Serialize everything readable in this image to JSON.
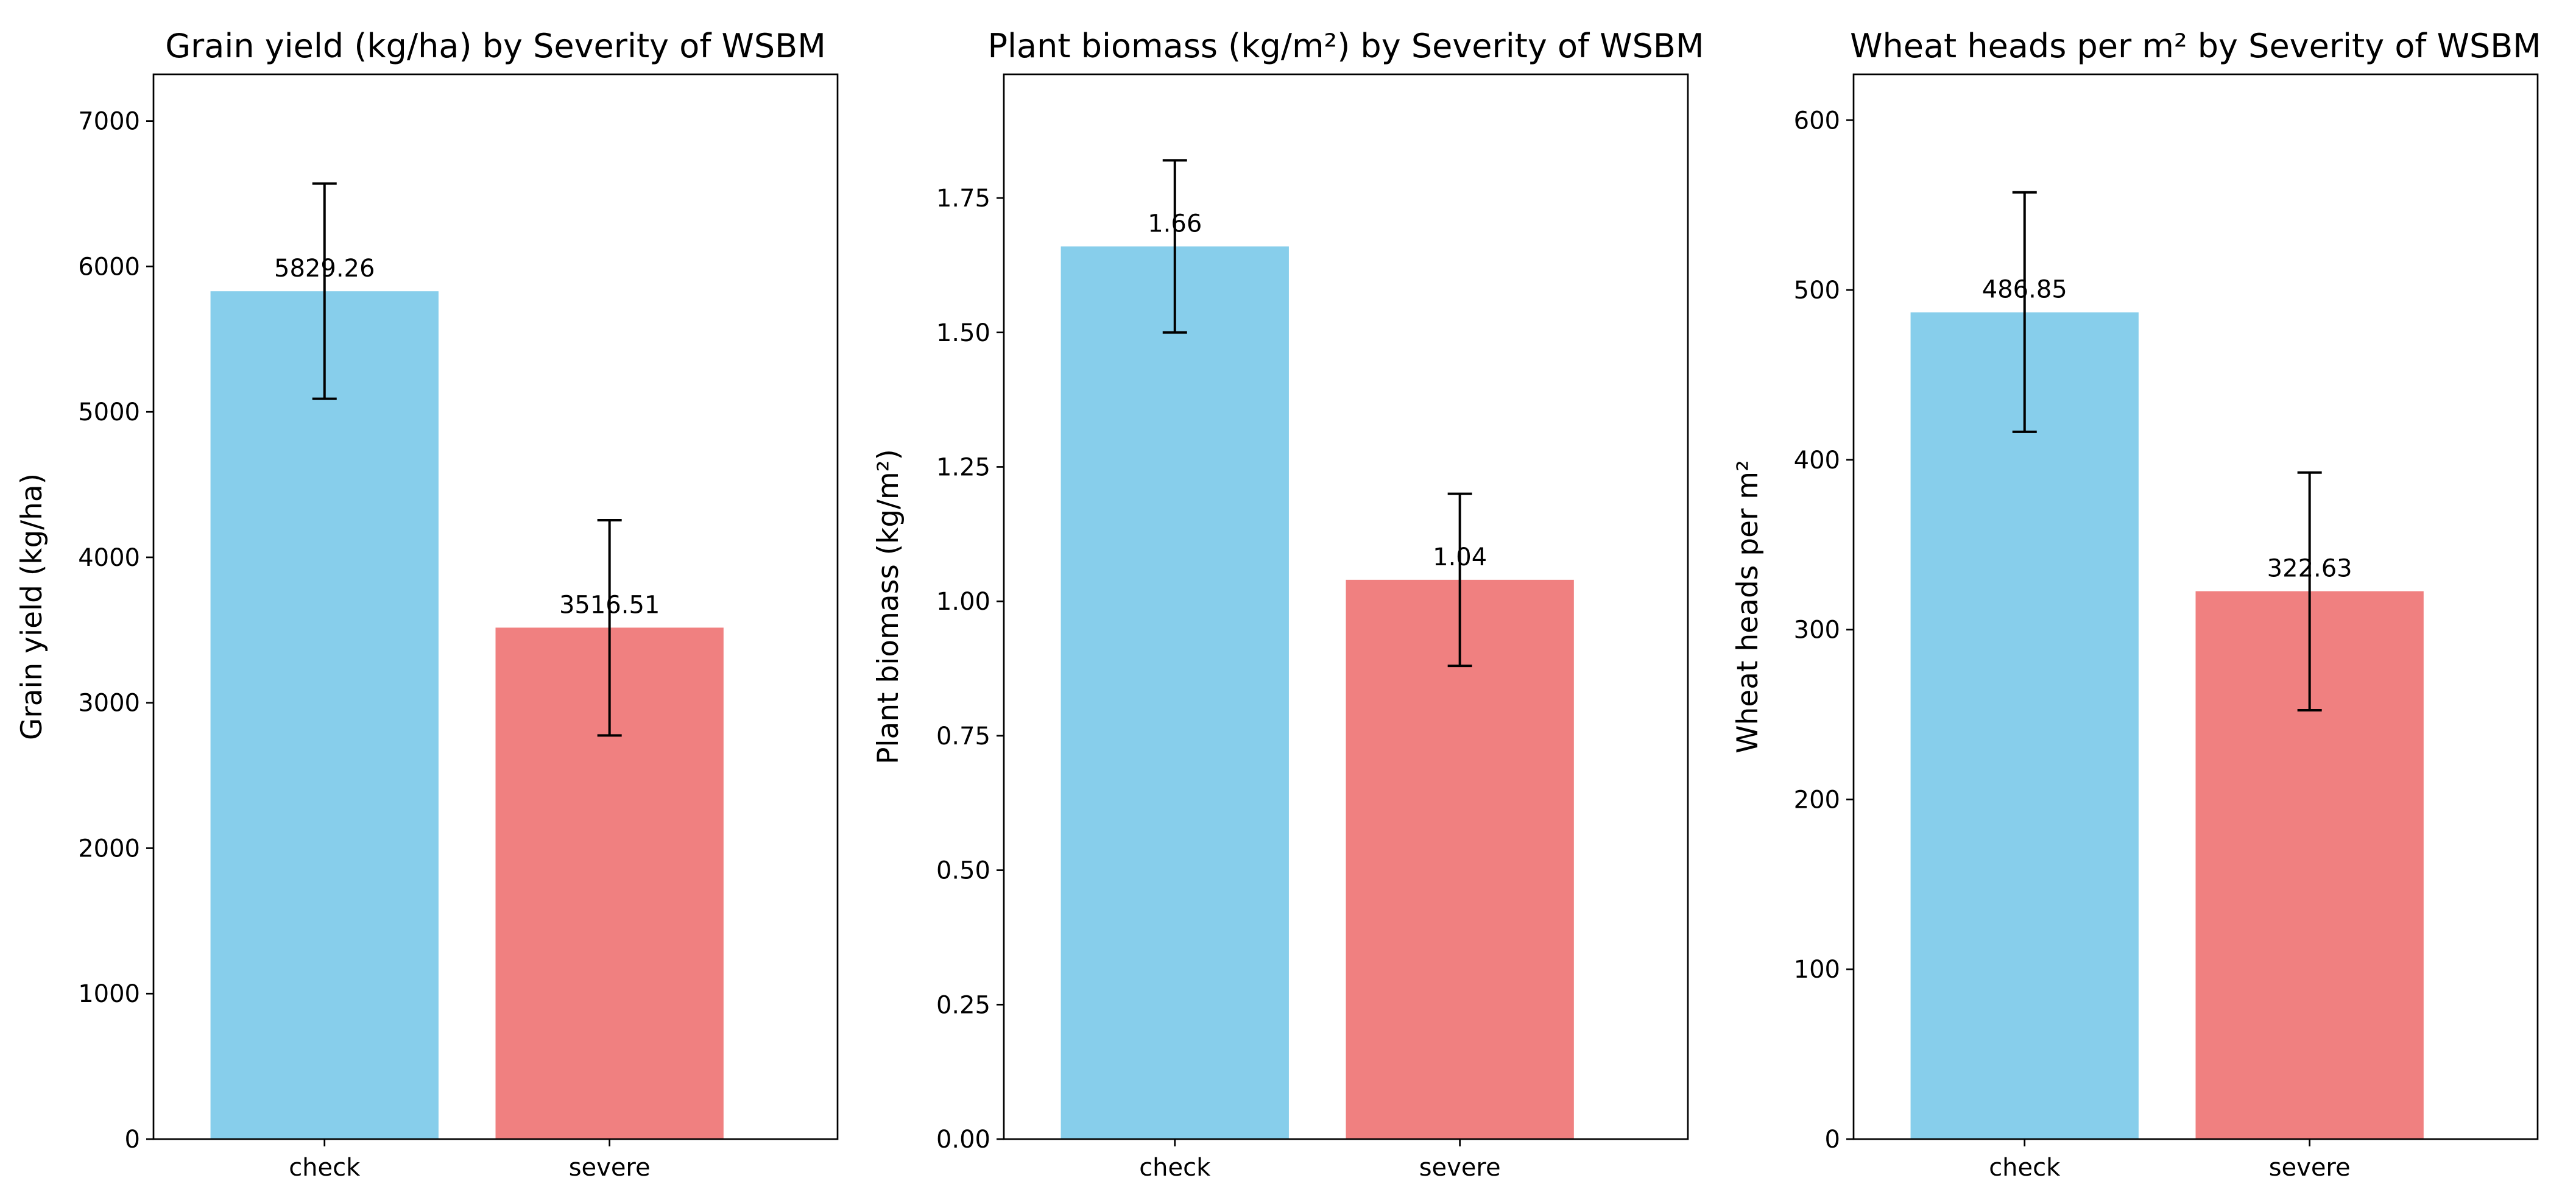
{
  "chart_data": [
    {
      "type": "bar",
      "title": "Grain yield (kg/ha) by Severity of WSBM",
      "xlabel": "",
      "ylabel": "Grain yield (kg/ha)",
      "categories": [
        "check",
        "severe"
      ],
      "values": [
        5829.26,
        3516.51
      ],
      "value_labels": [
        "5829.26",
        "3516.51"
      ],
      "error_low": [
        5090,
        2775
      ],
      "error_high": [
        6570,
        4255
      ],
      "ylim": [
        0,
        7321
      ],
      "yticks": [
        0,
        1000,
        2000,
        3000,
        4000,
        5000,
        6000,
        7000
      ],
      "ytick_labels": [
        "0",
        "1000",
        "2000",
        "3000",
        "4000",
        "5000",
        "6000",
        "7000"
      ],
      "colors": [
        "#87ceeb",
        "#f08080"
      ]
    },
    {
      "type": "bar",
      "title": "Plant biomass (kg/m²) by Severity of WSBM",
      "xlabel": "",
      "ylabel": "Plant biomass (kg/m²)",
      "categories": [
        "check",
        "severe"
      ],
      "values": [
        1.66,
        1.04
      ],
      "value_labels": [
        "1.66",
        "1.04"
      ],
      "error_low": [
        1.5,
        0.88
      ],
      "error_high": [
        1.82,
        1.2
      ],
      "ylim": [
        0,
        1.98
      ],
      "yticks": [
        0,
        0.25,
        0.5,
        0.75,
        1.0,
        1.25,
        1.5,
        1.75
      ],
      "ytick_labels": [
        "0.00",
        "0.25",
        "0.50",
        "0.75",
        "1.00",
        "1.25",
        "1.50",
        "1.75"
      ],
      "colors": [
        "#87ceeb",
        "#f08080"
      ]
    },
    {
      "type": "bar",
      "title": "Wheat heads per m² by Severity of WSBM",
      "xlabel": "",
      "ylabel": "Wheat heads per m²",
      "categories": [
        "check",
        "severe"
      ],
      "values": [
        486.85,
        322.63
      ],
      "value_labels": [
        "486.85",
        "322.63"
      ],
      "error_low": [
        416.5,
        252.5
      ],
      "error_high": [
        557.5,
        392.5
      ],
      "ylim": [
        0,
        627
      ],
      "yticks": [
        0,
        100,
        200,
        300,
        400,
        500,
        600
      ],
      "ytick_labels": [
        "0",
        "100",
        "200",
        "300",
        "400",
        "500",
        "600"
      ],
      "colors": [
        "#87ceeb",
        "#f08080"
      ]
    }
  ]
}
